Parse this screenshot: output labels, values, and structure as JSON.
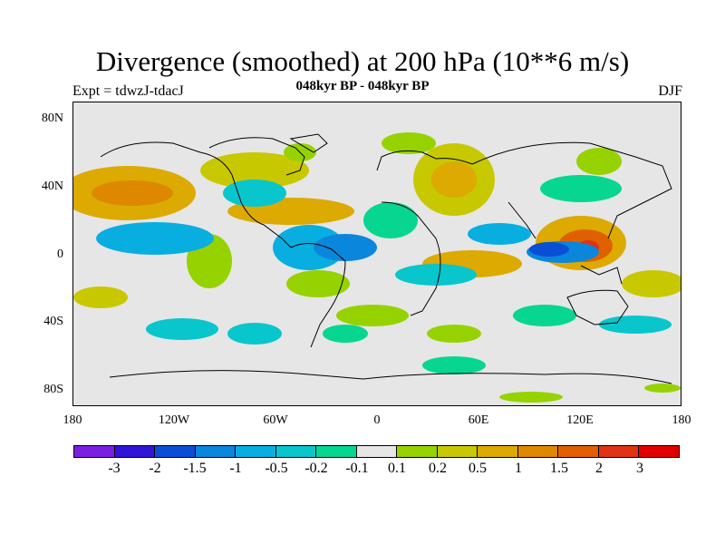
{
  "title": "Divergence (smoothed) at 200 hPa (10**6 m/s)",
  "experiment": "Expt = tdwzJ-tdacJ",
  "period": "048kyr BP - 048kyr BP",
  "season": "DJF",
  "y_ticks": [
    "80N",
    "40N",
    "0",
    "40S",
    "80S"
  ],
  "x_ticks": [
    "180",
    "120W",
    "60W",
    "0",
    "60E",
    "120E",
    "180"
  ],
  "legend": {
    "colors": [
      "#7a1ee0",
      "#3014d8",
      "#0a4ed6",
      "#0a86dc",
      "#09aee0",
      "#08c6cc",
      "#06d690",
      "#e6e6e6",
      "#96d200",
      "#c8c800",
      "#dcaa00",
      "#de8800",
      "#e06000",
      "#e03214",
      "#e00000"
    ],
    "labels": [
      "-3",
      "-2",
      "-1.5",
      "-1",
      "-0.5",
      "-0.2",
      "-0.1",
      "0.1",
      "0.2",
      "0.5",
      "1",
      "1.5",
      "2",
      "3"
    ]
  }
}
